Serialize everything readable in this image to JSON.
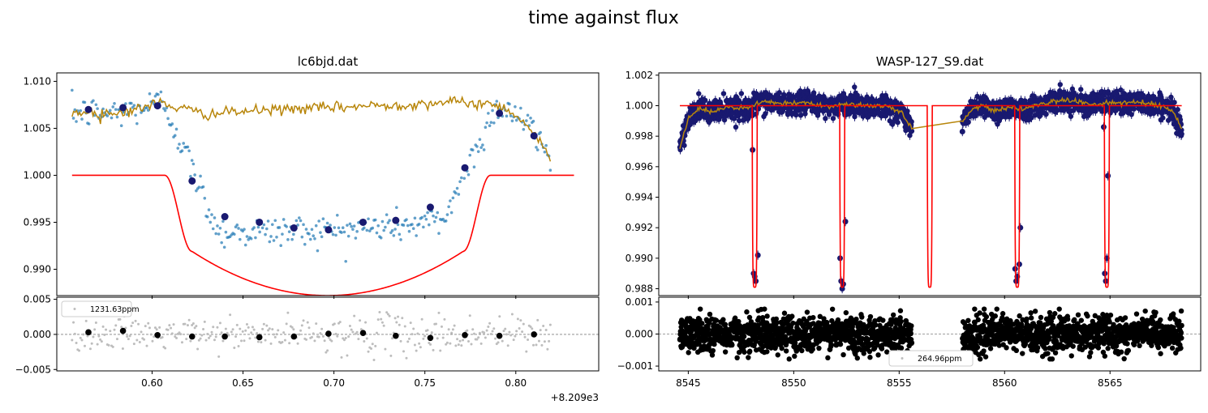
{
  "figure": {
    "suptitle": "time against flux"
  },
  "chart_data": [
    {
      "id": "left-main",
      "type": "scatter",
      "title": "lc6bjd.dat",
      "xlim": [
        0.5476,
        0.8456
      ],
      "ylim": [
        0.9872,
        1.0109
      ],
      "yticks": [
        0.99,
        0.995,
        1.0,
        1.005,
        1.01
      ],
      "ytick_labels": [
        "0.990",
        "0.995",
        "1.000",
        "1.005",
        "1.010"
      ],
      "x_offset_label": "+8.209e3",
      "colors": {
        "data": "#1f77b4",
        "binned": "#191970",
        "model": "#ff0000",
        "trend": "#b8860b"
      },
      "model_params": {
        "t_start": 0.556,
        "t_end": 0.832,
        "t1": 0.607,
        "t2": 0.622,
        "t3": 0.771,
        "t4": 0.786,
        "tc": 0.6965,
        "depth": 0.0128,
        "ingress_drop": 0.0081
      },
      "binned": {
        "x": [
          0.565,
          0.584,
          0.603,
          0.622,
          0.64,
          0.659,
          0.678,
          0.697,
          0.716,
          0.734,
          0.753,
          0.772,
          0.791,
          0.81
        ],
        "y": [
          1.007,
          1.0072,
          1.0074,
          0.9994,
          0.9956,
          0.995,
          0.9944,
          0.9942,
          0.995,
          0.9952,
          0.9966,
          1.0008,
          1.0066,
          1.0042
        ]
      },
      "trend_anchors": {
        "x": [
          0.556,
          0.58,
          0.595,
          0.604,
          0.612,
          0.63,
          0.65,
          0.68,
          0.7,
          0.72,
          0.74,
          0.76,
          0.775,
          0.79,
          0.8,
          0.81,
          0.819
        ],
        "y": [
          1.0067,
          1.0066,
          1.0072,
          1.0078,
          1.0073,
          1.0065,
          1.0068,
          1.0071,
          1.0072,
          1.0074,
          1.0075,
          1.0078,
          1.0077,
          1.0075,
          1.0065,
          1.0045,
          1.0017
        ]
      },
      "data_window": [
        0.556,
        0.819
      ]
    },
    {
      "id": "left-resid",
      "type": "scatter",
      "xlim": [
        0.5476,
        0.8456
      ],
      "ylim": [
        -0.0052,
        0.0053
      ],
      "yticks": [
        -0.005,
        0.0,
        0.005
      ],
      "ytick_labels": [
        "−0.005",
        "0.000",
        "0.005"
      ],
      "xticks": [
        0.6,
        0.65,
        0.7,
        0.75,
        0.8
      ],
      "xtick_labels": [
        "0.60",
        "0.65",
        "0.70",
        "0.75",
        "0.80"
      ],
      "x_offset_label": "+8.209e3",
      "legend": "1231.63ppm",
      "colors": {
        "points": "#bdbdbd",
        "binned": "#000000",
        "zero": "#808080"
      },
      "binned": {
        "x": [
          0.565,
          0.584,
          0.603,
          0.622,
          0.64,
          0.659,
          0.678,
          0.697,
          0.716,
          0.734,
          0.753,
          0.772,
          0.791,
          0.81
        ],
        "y": [
          0.0003,
          0.0005,
          -0.0001,
          -0.0003,
          -0.0003,
          -0.0004,
          -0.0003,
          0.0001,
          0.0002,
          -0.0002,
          -0.0005,
          -0.0001,
          -0.0002,
          0.0
        ]
      }
    },
    {
      "id": "right-main",
      "type": "scatter",
      "title": "WASP-127_S9.dat",
      "xlim": [
        8543.6,
        8569.3
      ],
      "ylim": [
        0.98755,
        1.00215
      ],
      "yticks": [
        0.988,
        0.99,
        0.992,
        0.994,
        0.996,
        0.998,
        1.0,
        1.002
      ],
      "ytick_labels": [
        "0.988",
        "0.990",
        "0.992",
        "0.994",
        "0.996",
        "0.998",
        "1.000",
        "1.002"
      ],
      "colors": {
        "data": "#191970",
        "model": "#ff0000",
        "trend": "#b8860b"
      },
      "segments": [
        [
          8544.6,
          8555.6
        ],
        [
          8558.0,
          8568.4
        ]
      ],
      "transits": [
        8548.15,
        8552.3,
        8556.45,
        8560.6,
        8564.85
      ],
      "model_range": [
        8544.6,
        8568.4
      ],
      "transit_depth": 0.0119,
      "transit_half_width": 0.12,
      "outliers": [
        {
          "x": 8548.05,
          "y": 0.9971
        },
        {
          "x": 8548.1,
          "y": 0.989
        },
        {
          "x": 8548.15,
          "y": 0.9888
        },
        {
          "x": 8548.2,
          "y": 0.9885
        },
        {
          "x": 8548.3,
          "y": 0.9902
        },
        {
          "x": 8552.2,
          "y": 0.99
        },
        {
          "x": 8552.25,
          "y": 0.9885
        },
        {
          "x": 8552.3,
          "y": 0.988
        },
        {
          "x": 8552.35,
          "y": 0.9883
        },
        {
          "x": 8552.45,
          "y": 0.9924
        },
        {
          "x": 8558.0,
          "y": 0.9983
        },
        {
          "x": 8560.5,
          "y": 0.9893
        },
        {
          "x": 8560.55,
          "y": 0.9885
        },
        {
          "x": 8560.6,
          "y": 0.9888
        },
        {
          "x": 8560.7,
          "y": 0.9896
        },
        {
          "x": 8560.75,
          "y": 0.992
        },
        {
          "x": 8564.7,
          "y": 0.9986
        },
        {
          "x": 8564.75,
          "y": 0.989
        },
        {
          "x": 8564.8,
          "y": 0.9885
        },
        {
          "x": 8564.85,
          "y": 0.99
        },
        {
          "x": 8564.9,
          "y": 0.9954
        }
      ],
      "trend_anchors": {
        "x": [
          8544.6,
          8545.0,
          8545.5,
          8546.0,
          8547.0,
          8547.8,
          8548.5,
          8549.5,
          8550.5,
          8551.5,
          8552.8,
          8553.5,
          8554.5,
          8555.1,
          8555.6,
          8558.0,
          8558.5,
          8559.0,
          8559.5,
          8560.2,
          8561.0,
          8562.0,
          8563.0,
          8564.0,
          8565.5,
          8566.5,
          8567.5,
          8568.0,
          8568.4
        ],
        "y": [
          0.9973,
          0.9992,
          0.9998,
          0.9996,
          0.9999,
          0.9998,
          1.0003,
          1.0001,
          1.0002,
          1.0,
          1.0001,
          1.0,
          0.9999,
          0.9996,
          0.9985,
          0.999,
          0.9998,
          1.0001,
          0.9996,
          0.9999,
          0.9998,
          1.0002,
          1.0004,
          1.0001,
          1.0002,
          1.0002,
          1.0,
          0.9996,
          0.9985
        ]
      }
    },
    {
      "id": "right-resid",
      "type": "scatter",
      "xlim": [
        8543.6,
        8569.3
      ],
      "ylim": [
        -0.00115,
        0.00115
      ],
      "yticks": [
        -0.001,
        0.0,
        0.001
      ],
      "ytick_labels": [
        "−0.001",
        "0.000",
        "0.001"
      ],
      "xticks": [
        8545,
        8550,
        8555,
        8560,
        8565
      ],
      "xtick_labels": [
        "8545",
        "8550",
        "8555",
        "8560",
        "8565"
      ],
      "legend": "264.96ppm",
      "colors": {
        "points": "#000000",
        "zero": "#808080"
      },
      "segments": [
        [
          8544.6,
          8555.6
        ],
        [
          8558.0,
          8568.4
        ]
      ]
    }
  ]
}
